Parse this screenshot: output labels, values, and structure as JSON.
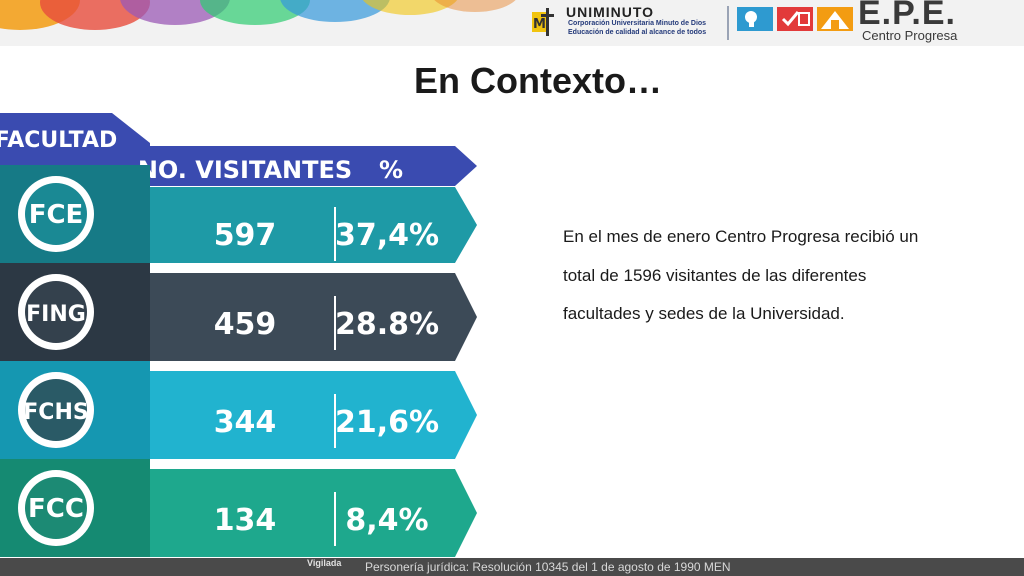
{
  "header": {
    "uni_name": "UNIMINUTO",
    "uni_line1": "Corporación Universitaria Minuto de Dios",
    "uni_line2": "Educación de calidad al alcance de todos",
    "epe_title": "E.P.E.",
    "epe_subtitle": "Centro Progresa"
  },
  "slide": {
    "title": "En Contexto…"
  },
  "table": {
    "faculty_header": "FACULTAD",
    "visitors_header": "NO. VISITANTES",
    "percent_header": "%",
    "rows": [
      {
        "faculty": "FCE",
        "visitors": "597",
        "percent": "37,4%",
        "color_main": "#1e9aa6",
        "color_dark": "#167a86",
        "circle": "#1a8994"
      },
      {
        "faculty": "FING",
        "visitors": "459",
        "percent": "28.8%",
        "color_main": "#3c4a57",
        "color_dark": "#2c3844",
        "circle": "#34414d"
      },
      {
        "faculty": "FCHS",
        "visitors": "344",
        "percent": "21,6%",
        "color_main": "#21b3cf",
        "color_dark": "#1597b1",
        "circle": "#2a5a66"
      },
      {
        "faculty": "FCC",
        "visitors": "134",
        "percent": "8,4%",
        "color_main": "#1ea88d",
        "color_dark": "#158a72",
        "circle": "#1c8a74"
      }
    ],
    "header_color": "#3a4bb0"
  },
  "body": {
    "paragraph": "En el mes de enero Centro Progresa recibió un total de 1596 visitantes de las diferentes facultades y sedes de la Universidad."
  },
  "footer": {
    "vigilada": "Vigilada",
    "text": "Personería jurídica: Resolución 10345 del 1 de agosto de 1990 MEN"
  }
}
